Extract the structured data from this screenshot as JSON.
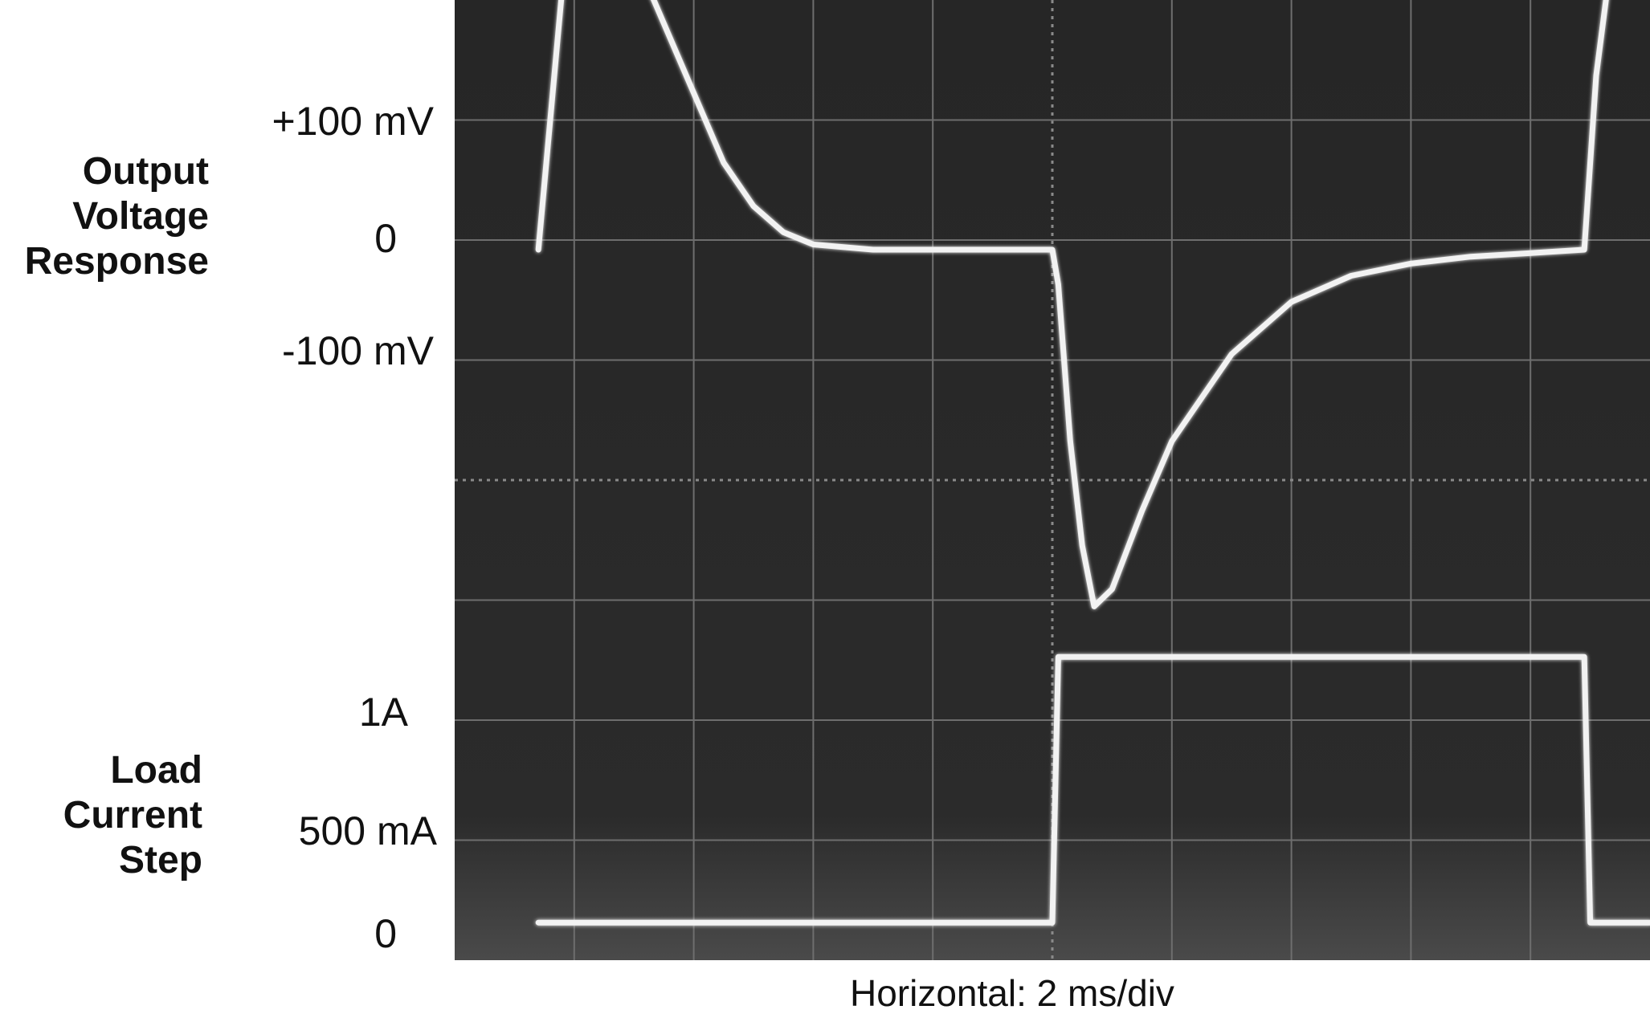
{
  "chart_data": {
    "type": "line",
    "channels": [
      {
        "name_lines": [
          "Output",
          "Voltage",
          "Response"
        ],
        "ticks": [
          "+100 mV",
          "0",
          "-100 mV"
        ]
      },
      {
        "name_lines": [
          "Load",
          "Current",
          "Step"
        ],
        "ticks": [
          "1A",
          "500 mA",
          "0"
        ]
      }
    ],
    "horizontal_label": "Horizontal: 2 ms/div",
    "time_per_div_ms": 2,
    "screen_divisions": {
      "x": 10,
      "y": 8
    },
    "x_range_ms": [
      0,
      20
    ],
    "series": [
      {
        "name": "Output Voltage Response",
        "unit": "mV",
        "x_ms": [
          1.4,
          1.8,
          2.2,
          2.6,
          3.0,
          3.5,
          4.0,
          4.5,
          5.0,
          5.5,
          6.0,
          7.0,
          8.0,
          9.0,
          10.0,
          10.1,
          10.3,
          10.5,
          10.7,
          11.0,
          11.5,
          12.0,
          13.0,
          14.0,
          15.0,
          16.0,
          17.0,
          18.0,
          18.9,
          19.1,
          19.4,
          19.8,
          20.0
        ],
        "y_mV": [
          0,
          150,
          192,
          190,
          170,
          130,
          90,
          50,
          25,
          10,
          3,
          0,
          0,
          0,
          0,
          -20,
          -110,
          -170,
          -205,
          -195,
          -150,
          -110,
          -60,
          -30,
          -15,
          -8,
          -4,
          -2,
          0,
          100,
          180,
          195,
          185
        ]
      },
      {
        "name": "Load Current Step",
        "unit": "mA",
        "x_ms": [
          1.4,
          10.0,
          10.1,
          18.9,
          19.0,
          20.0
        ],
        "y_mA": [
          80,
          80,
          1000,
          1000,
          80,
          80
        ]
      }
    ]
  }
}
